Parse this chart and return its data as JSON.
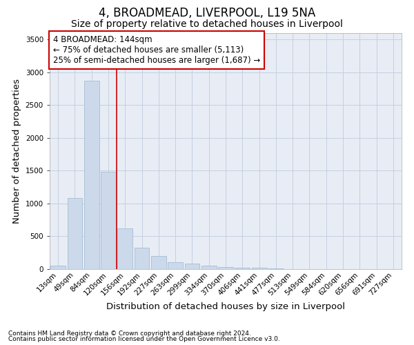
{
  "title": "4, BROADMEAD, LIVERPOOL, L19 5NA",
  "subtitle": "Size of property relative to detached houses in Liverpool",
  "xlabel": "Distribution of detached houses by size in Liverpool",
  "ylabel": "Number of detached properties",
  "footnote1": "Contains HM Land Registry data © Crown copyright and database right 2024.",
  "footnote2": "Contains public sector information licensed under the Open Government Licence v3.0.",
  "bar_labels": [
    "13sqm",
    "49sqm",
    "84sqm",
    "120sqm",
    "156sqm",
    "192sqm",
    "227sqm",
    "263sqm",
    "299sqm",
    "334sqm",
    "370sqm",
    "406sqm",
    "441sqm",
    "477sqm",
    "513sqm",
    "549sqm",
    "584sqm",
    "620sqm",
    "656sqm",
    "691sqm",
    "727sqm"
  ],
  "bar_values": [
    50,
    1080,
    2870,
    1480,
    625,
    330,
    195,
    105,
    80,
    55,
    30,
    20,
    18,
    10,
    4,
    4,
    2,
    2,
    1,
    1,
    1
  ],
  "bar_color": "#ccd9ea",
  "bar_edgecolor": "#9ab5d0",
  "grid_color": "#c5cfe0",
  "background_color": "#e8edf5",
  "vline_color": "#cc0000",
  "vline_x": 3.5,
  "annotation_text": "4 BROADMEAD: 144sqm\n← 75% of detached houses are smaller (5,113)\n25% of semi-detached houses are larger (1,687) →",
  "annotation_box_facecolor": "#ffffff",
  "annotation_box_edgecolor": "#cc0000",
  "ylim": [
    0,
    3600
  ],
  "yticks": [
    0,
    500,
    1000,
    1500,
    2000,
    2500,
    3000,
    3500
  ],
  "title_fontsize": 12,
  "subtitle_fontsize": 10,
  "axis_label_fontsize": 9.5,
  "tick_fontsize": 7.5,
  "annot_fontsize": 8.5
}
